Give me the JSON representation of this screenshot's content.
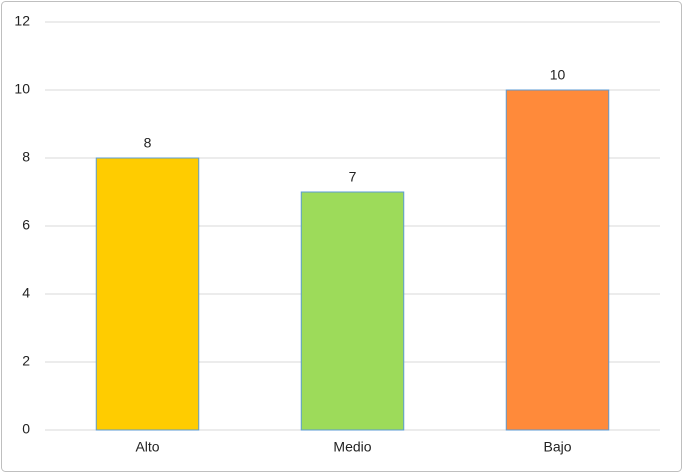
{
  "chart_data": {
    "type": "bar",
    "categories": [
      "Alto",
      "Medio",
      "Bajo"
    ],
    "values": [
      8,
      7,
      10
    ],
    "colors": [
      "#ffcc00",
      "#9ddb5a",
      "#ff8a3a"
    ],
    "ylim": [
      0,
      12
    ],
    "yticks": [
      0,
      2,
      4,
      6,
      8,
      10,
      12
    ],
    "grid": true
  }
}
